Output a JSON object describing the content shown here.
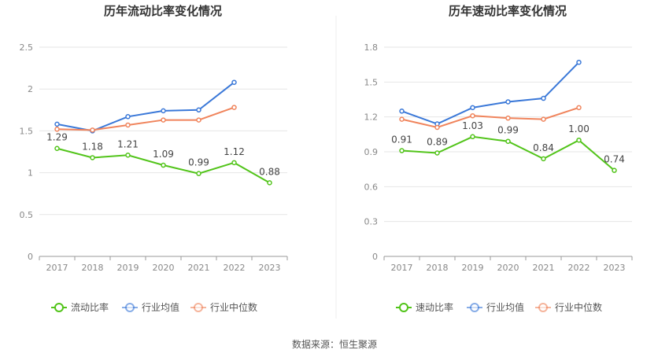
{
  "source": "数据来源：恒生聚源",
  "chart_data": [
    {
      "type": "line",
      "title": "历年流动比率变化情况",
      "categories": [
        "2017",
        "2018",
        "2019",
        "2020",
        "2021",
        "2022",
        "2023"
      ],
      "ylim": [
        0,
        2.5
      ],
      "yticks": [
        "0",
        "0.5",
        "1",
        "1.5",
        "2",
        "2.5"
      ],
      "ytick_values": [
        0,
        0.5,
        1,
        1.5,
        2,
        2.5
      ],
      "series": [
        {
          "name": "流动比率",
          "color": "#52c41a",
          "labeled": true,
          "values": [
            1.29,
            1.18,
            1.21,
            1.09,
            0.99,
            1.12,
            0.88
          ],
          "labels": [
            "1.29",
            "1.18",
            "1.21",
            "1.09",
            "0.99",
            "1.12",
            "0.88"
          ]
        },
        {
          "name": "行业均值",
          "color": "#3a78d8",
          "labeled": false,
          "values": [
            1.58,
            1.5,
            1.67,
            1.74,
            1.75,
            2.08,
            null
          ]
        },
        {
          "name": "行业中位数",
          "color": "#f0845c",
          "labeled": false,
          "values": [
            1.52,
            1.51,
            1.57,
            1.63,
            1.63,
            1.78,
            null
          ]
        }
      ]
    },
    {
      "type": "line",
      "title": "历年速动比率变化情况",
      "categories": [
        "2017",
        "2018",
        "2019",
        "2020",
        "2021",
        "2022",
        "2023"
      ],
      "ylim": [
        0,
        1.8
      ],
      "yticks": [
        "0",
        "0.3",
        "0.6",
        "0.9",
        "1.2",
        "1.5",
        "1.8"
      ],
      "ytick_values": [
        0,
        0.3,
        0.6,
        0.9,
        1.2,
        1.5,
        1.8
      ],
      "series": [
        {
          "name": "速动比率",
          "color": "#52c41a",
          "labeled": true,
          "values": [
            0.91,
            0.89,
            1.03,
            0.99,
            0.84,
            1.0,
            0.74
          ],
          "labels": [
            "0.91",
            "0.89",
            "1.03",
            "0.99",
            "0.84",
            "1.00",
            "0.74"
          ]
        },
        {
          "name": "行业均值",
          "color": "#3a78d8",
          "labeled": false,
          "values": [
            1.25,
            1.14,
            1.28,
            1.33,
            1.36,
            1.67,
            null
          ]
        },
        {
          "name": "行业中位数",
          "color": "#f0845c",
          "labeled": false,
          "values": [
            1.18,
            1.11,
            1.21,
            1.19,
            1.18,
            1.28,
            null
          ]
        }
      ]
    }
  ]
}
